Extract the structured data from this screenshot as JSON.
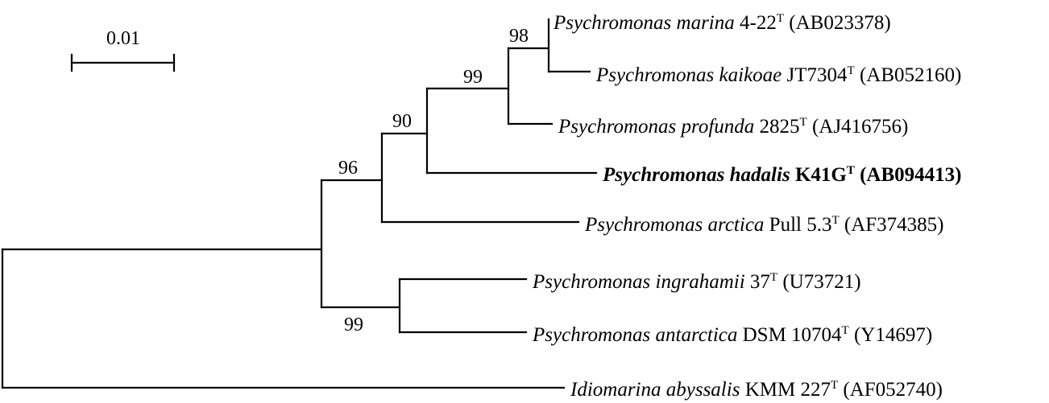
{
  "scale_bar": {
    "label": "0.01"
  },
  "bootstrap_values": [
    "98",
    "99",
    "90",
    "96",
    "99"
  ],
  "taxa": [
    {
      "species": "Psychromonas marina",
      "strain": "4-22",
      "superscript": "T",
      "accession": "(AB023378)",
      "highlighted": false
    },
    {
      "species": "Psychromonas kaikoae",
      "strain": "JT7304",
      "superscript": "T",
      "accession": "(AB052160)",
      "highlighted": false
    },
    {
      "species": "Psychromonas profunda",
      "strain": "2825",
      "superscript": "T",
      "accession": "(AJ416756)",
      "highlighted": false
    },
    {
      "species": "Psychromonas hadalis",
      "strain": "K41G",
      "superscript": "T",
      "accession": "(AB094413)",
      "highlighted": true
    },
    {
      "species": "Psychromonas arctica",
      "strain": "Pull 5.3",
      "superscript": "T",
      "accession": "(AF374385)",
      "highlighted": false
    },
    {
      "species": "Psychromonas ingrahamii",
      "strain": "37",
      "superscript": "T",
      "accession": "(U73721)",
      "highlighted": false
    },
    {
      "species": "Psychromonas antarctica",
      "strain": "DSM 10704",
      "superscript": "T",
      "accession": "(Y14697)",
      "highlighted": false
    },
    {
      "species": "Idiomarina abyssalis",
      "strain": "KMM 227",
      "superscript": "T",
      "accession": "(AF052740)",
      "highlighted": false
    }
  ]
}
